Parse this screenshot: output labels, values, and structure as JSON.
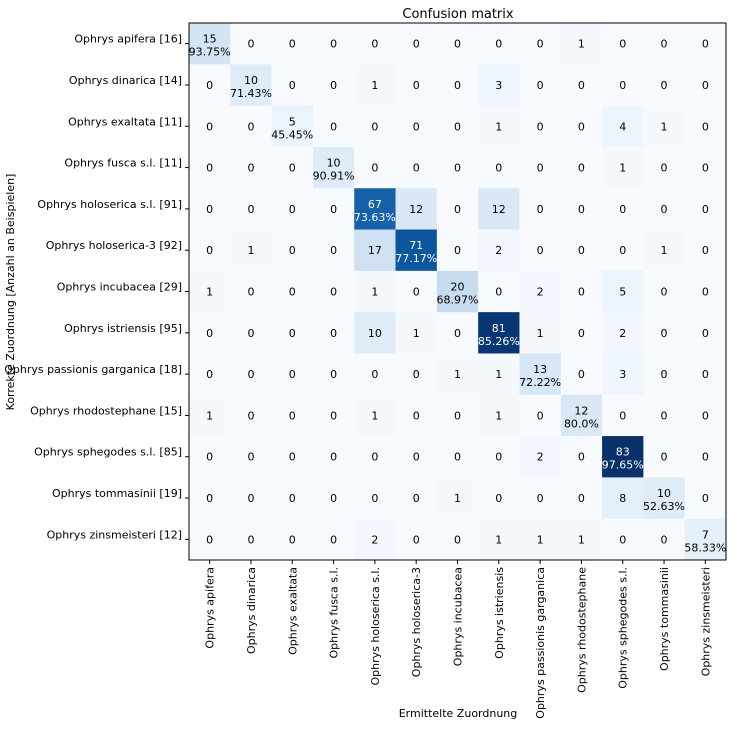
{
  "chart_data": {
    "type": "heatmap",
    "title": "Confusion matrix",
    "xlabel": "Ermittelte Zuordnung",
    "ylabel": "Korrekte Zuordnung [Anzahl an Beispielen]",
    "colormap": "Blues",
    "grid": false,
    "row_labels": [
      "Ophrys apifera [16]",
      "Ophrys dinarica [14]",
      "Ophrys exaltata [11]",
      "Ophrys fusca s.l. [11]",
      "Ophrys holoserica s.l. [91]",
      "Ophrys holoserica-3 [92]",
      "Ophrys incubacea [29]",
      "Ophrys istriensis [95]",
      "Ophrys passionis garganica [18]",
      "Ophrys rhodostephane [15]",
      "Ophrys sphegodes s.l. [85]",
      "Ophrys tommasinii [19]",
      "Ophrys zinsmeisteri [12]"
    ],
    "col_labels": [
      "Ophrys apifera",
      "Ophrys dinarica",
      "Ophrys exaltata",
      "Ophrys fusca s.l.",
      "Ophrys holoserica s.l.",
      "Ophrys holoserica-3",
      "Ophrys incubacea",
      "Ophrys istriensis",
      "Ophrys passionis garganica",
      "Ophrys rhodostephane",
      "Ophrys sphegodes s.l.",
      "Ophrys tommasinii",
      "Ophrys zinsmeisteri"
    ],
    "values": [
      [
        15,
        0,
        0,
        0,
        0,
        0,
        0,
        0,
        0,
        1,
        0,
        0,
        0
      ],
      [
        0,
        10,
        0,
        0,
        1,
        0,
        0,
        3,
        0,
        0,
        0,
        0,
        0
      ],
      [
        0,
        0,
        5,
        0,
        0,
        0,
        0,
        1,
        0,
        0,
        4,
        1,
        0
      ],
      [
        0,
        0,
        0,
        10,
        0,
        0,
        0,
        0,
        0,
        0,
        1,
        0,
        0
      ],
      [
        0,
        0,
        0,
        0,
        67,
        12,
        0,
        12,
        0,
        0,
        0,
        0,
        0
      ],
      [
        0,
        1,
        0,
        0,
        17,
        71,
        0,
        2,
        0,
        0,
        0,
        1,
        0
      ],
      [
        1,
        0,
        0,
        0,
        1,
        0,
        20,
        0,
        2,
        0,
        5,
        0,
        0
      ],
      [
        0,
        0,
        0,
        0,
        10,
        1,
        0,
        81,
        1,
        0,
        2,
        0,
        0
      ],
      [
        0,
        0,
        0,
        0,
        0,
        0,
        1,
        1,
        13,
        0,
        3,
        0,
        0
      ],
      [
        1,
        0,
        0,
        0,
        1,
        0,
        0,
        1,
        0,
        12,
        0,
        0,
        0
      ],
      [
        0,
        0,
        0,
        0,
        0,
        0,
        0,
        0,
        2,
        0,
        83,
        0,
        0
      ],
      [
        0,
        0,
        0,
        0,
        0,
        0,
        1,
        0,
        0,
        0,
        8,
        10,
        0
      ],
      [
        0,
        0,
        0,
        0,
        2,
        0,
        0,
        1,
        1,
        1,
        0,
        0,
        7
      ]
    ],
    "diagonal_percentages": [
      "93.75%",
      "71.43%",
      "45.45%",
      "90.91%",
      "73.63%",
      "77.17%",
      "68.97%",
      "85.26%",
      "72.22%",
      "80.0%",
      "97.65%",
      "52.63%",
      "58.33%"
    ]
  }
}
